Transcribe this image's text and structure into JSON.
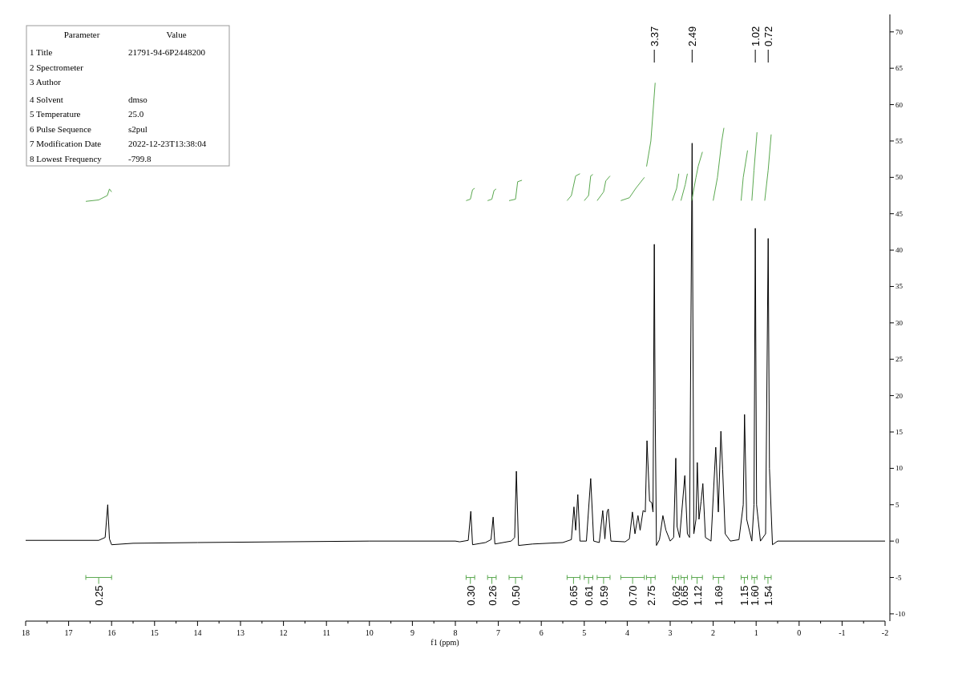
{
  "chart_data": {
    "type": "line",
    "xlabel": "f1 (ppm)",
    "xlim": [
      18,
      -2
    ],
    "xticks": [
      18,
      17,
      16,
      15,
      14,
      13,
      12,
      11,
      10,
      9,
      8,
      7,
      6,
      5,
      4,
      3,
      2,
      1,
      0,
      -1,
      -2
    ],
    "ylim": [
      -11,
      72.4
    ],
    "yticks": [
      -10,
      -5,
      0,
      5,
      10,
      15,
      20,
      25,
      30,
      35,
      40,
      45,
      50,
      55,
      60,
      65,
      70
    ],
    "series": [
      {
        "color": "#000000",
        "x": [
          18,
          16.3,
          16.15,
          16.09,
          16.05,
          16.0,
          15.5,
          14,
          10,
          8,
          7.9,
          7.7,
          7.64,
          7.6,
          7.3,
          7.17,
          7.12,
          7.08,
          6.7,
          6.62,
          6.58,
          6.53,
          6.2,
          5.5,
          5.3,
          5.24,
          5.2,
          5.15,
          5.1,
          4.95,
          4.85,
          4.78,
          4.65,
          4.57,
          4.52,
          4.47,
          4.44,
          4.38,
          4.05,
          3.95,
          3.88,
          3.82,
          3.75,
          3.7,
          3.63,
          3.58,
          3.54,
          3.48,
          3.43,
          3.4,
          3.37,
          3.35,
          3.32,
          3.25,
          3.17,
          3.1,
          3.0,
          2.92,
          2.87,
          2.84,
          2.78,
          2.66,
          2.6,
          2.55,
          2.49,
          2.45,
          2.4,
          2.37,
          2.33,
          2.28,
          2.24,
          2.18,
          2.05,
          1.94,
          1.88,
          1.82,
          1.78,
          1.72,
          1.6,
          1.4,
          1.3,
          1.27,
          1.22,
          1.1,
          1.05,
          1.02,
          0.99,
          0.9,
          0.78,
          0.72,
          0.69,
          0.62,
          0.5,
          -2
        ],
        "values": [
          0.1,
          0.1,
          0.5,
          5.0,
          0.3,
          -0.5,
          -0.3,
          -0.2,
          0,
          0,
          -0.1,
          0.1,
          4.1,
          -0.5,
          -0.2,
          0.2,
          3.3,
          -0.4,
          0,
          0.5,
          9.6,
          -0.6,
          -0.4,
          -0.2,
          0.2,
          4.7,
          1.5,
          6.4,
          0,
          0,
          8.6,
          0,
          -0.2,
          4.2,
          0.3,
          4.0,
          4.4,
          0,
          -0.1,
          0.3,
          4.0,
          1.0,
          3.5,
          1.5,
          4.2,
          4.0,
          13.8,
          5.5,
          5.3,
          4,
          40.8,
          18,
          -0.6,
          0.2,
          3.5,
          1.5,
          0,
          0.5,
          11.4,
          2,
          0.5,
          9.0,
          1.0,
          0.5,
          54.7,
          1,
          3,
          10.8,
          3,
          5.5,
          7.9,
          0.5,
          0,
          12.9,
          4,
          15.1,
          9.9,
          1,
          0,
          0.2,
          5,
          17.4,
          3,
          0,
          5,
          43.0,
          5,
          0,
          1,
          41.6,
          10,
          -0.5,
          0,
          0
        ]
      },
      {
        "color": "#5aa84f",
        "x": [
          16.6,
          16.3,
          16.1,
          16.05,
          16.0,
          null,
          7.75,
          7.65,
          7.6,
          7.55,
          null,
          7.25,
          7.15,
          7.1,
          7.05,
          null,
          6.75,
          6.6,
          6.55,
          6.45,
          null,
          5.4,
          5.3,
          5.2,
          5.1,
          null,
          5.0,
          4.9,
          4.85,
          4.8,
          null,
          4.7,
          4.55,
          4.5,
          4.4,
          null,
          4.15,
          3.95,
          3.8,
          3.6,
          null,
          3.55,
          3.45,
          3.35,
          null,
          2.95,
          2.85,
          2.8,
          null,
          2.75,
          2.65,
          2.6,
          null,
          2.5,
          2.4,
          2.35,
          2.25,
          null,
          2.0,
          1.9,
          1.8,
          1.75,
          null,
          1.35,
          1.3,
          1.2,
          null,
          1.1,
          1.05,
          0.98,
          null,
          0.8,
          0.72,
          0.65
        ],
        "values": [
          46.7,
          46.9,
          47.5,
          48.4,
          48.0,
          null,
          46.8,
          47.0,
          48.3,
          48.5,
          null,
          46.8,
          47.0,
          48.2,
          48.4,
          null,
          46.8,
          47.0,
          49.4,
          49.6,
          null,
          46.8,
          47.5,
          50.2,
          50.5,
          null,
          46.8,
          47.5,
          50.2,
          50.4,
          null,
          46.8,
          48.0,
          49.5,
          50.2,
          null,
          46.8,
          47.2,
          48.5,
          50.0,
          null,
          51.5,
          55,
          63,
          null,
          46.8,
          48.5,
          50.5,
          null,
          46.8,
          49,
          50.5,
          null,
          46.8,
          50,
          51.5,
          53.5,
          null,
          46.8,
          50,
          55,
          56.8,
          null,
          46.8,
          50,
          53.7,
          null,
          46.8,
          51,
          56.2,
          null,
          46.8,
          51,
          55.9
        ]
      }
    ],
    "annotations": [
      "Parameter",
      "Value",
      "1 Title",
      "21791-94-6P2448200",
      "2 Spectrometer",
      "3 Author",
      "4 Solvent",
      "dmso",
      "5 Temperature",
      "25.0",
      "6 Pulse Sequence",
      "s2pul",
      "7 Modification Date",
      "2022-12-23T13:38:04",
      "8 Lowest Frequency",
      "-799.8",
      {
        "text": "3.37",
        "x": 3.37
      },
      {
        "text": "2.49",
        "x": 2.49
      },
      {
        "text": "1.02",
        "x": 1.02
      },
      {
        "text": "0.72",
        "x": 0.72
      },
      "0.25",
      "0.30",
      "0.26",
      "0.50",
      "0.65",
      "0.61",
      "0.59",
      "0.70",
      "2.75",
      "0.62",
      "0.65",
      "1.12",
      "1.69",
      "1.15",
      "1.60",
      "1.54"
    ]
  }
}
